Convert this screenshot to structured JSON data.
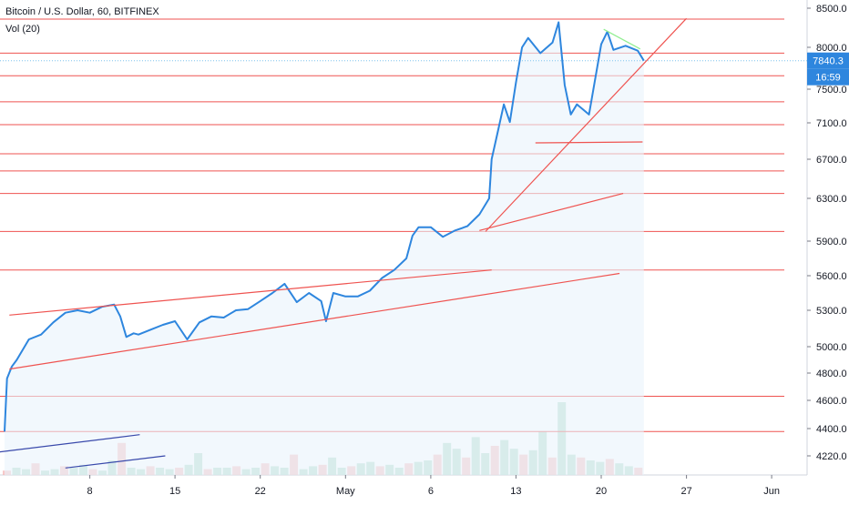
{
  "chart_data": {
    "type": "line",
    "title": "Bitcoin / U.S. Dollar, 60, BITFINEX",
    "indicator": "Vol (20)",
    "y_axis": {
      "position": "right",
      "ticks": [
        4220,
        4400,
        4600,
        4800,
        5000,
        5300,
        5600,
        5900,
        6300,
        6700,
        7100,
        7500,
        8000,
        8500
      ],
      "tick_labels": [
        "4220.0",
        "4400.0",
        "4600.0",
        "4800.0",
        "5000.0",
        "5300.0",
        "5600.0",
        "5900.0",
        "6300.0",
        "6700.0",
        "7100.0",
        "7500.0",
        "8000.0",
        "8500.0"
      ]
    },
    "x_axis": {
      "ticks": [
        8,
        15,
        22,
        29,
        36,
        43,
        50,
        57,
        64
      ],
      "tick_labels": [
        "8",
        "15",
        "22",
        "May",
        "6",
        "13",
        "20",
        "27",
        "Jun"
      ]
    },
    "price_label": "7840.3",
    "countdown_label": "16:59",
    "series": [
      {
        "color": "#2e86de",
        "x": [
          1,
          1.2,
          1.6,
          2,
          3,
          4,
          5,
          6,
          7,
          8,
          9,
          10,
          10.5,
          11,
          11.6,
          12,
          13,
          14,
          15,
          16,
          17,
          18,
          19,
          20,
          21,
          22,
          23,
          24,
          25,
          26,
          27,
          27.4,
          28,
          29,
          30,
          31,
          32,
          33,
          34,
          34.5,
          35,
          36,
          37,
          38,
          39,
          40,
          40.8,
          41,
          41.5,
          42,
          42.5,
          43,
          43.5,
          44,
          45,
          46,
          46.5,
          47,
          47.5,
          48,
          49,
          50,
          50.5,
          51,
          52,
          53,
          53.5
        ],
        "y": [
          4380,
          4760,
          4850,
          4900,
          5060,
          5100,
          5200,
          5280,
          5300,
          5280,
          5330,
          5350,
          5250,
          5080,
          5110,
          5100,
          5140,
          5180,
          5210,
          5060,
          5200,
          5250,
          5240,
          5300,
          5310,
          5380,
          5450,
          5530,
          5370,
          5450,
          5380,
          5210,
          5450,
          5420,
          5420,
          5470,
          5580,
          5650,
          5750,
          5950,
          6030,
          6030,
          5940,
          6000,
          6040,
          6150,
          6300,
          6700,
          7000,
          7320,
          7110,
          7580,
          8000,
          8120,
          7930,
          8060,
          8320,
          7550,
          7200,
          7320,
          7200,
          8040,
          8200,
          7970,
          8020,
          7960,
          7840
        ]
      }
    ],
    "volume_values": [
      3,
      5,
      4,
      8,
      3,
      4,
      6,
      5,
      7,
      4,
      3,
      10,
      22,
      5,
      4,
      6,
      5,
      4,
      5,
      7,
      15,
      4,
      5,
      5,
      6,
      4,
      5,
      8,
      6,
      5,
      14,
      4,
      6,
      7,
      12,
      5,
      6,
      8,
      9,
      6,
      7,
      5,
      8,
      9,
      10,
      14,
      22,
      18,
      12,
      26,
      15,
      20,
      24,
      18,
      14,
      17,
      30,
      12,
      50,
      14,
      12,
      10,
      9,
      11,
      8,
      6,
      5
    ],
    "annotations": {
      "horizontal_lines": [
        8360,
        7930,
        7660,
        7350,
        7080,
        6760,
        6580,
        6350,
        5990,
        5650,
        4630,
        4380
      ],
      "trendlines": [
        {
          "color": "#ef5350",
          "from": [
            1.4,
            5260
          ],
          "to": [
            41,
            5650
          ]
        },
        {
          "color": "#ef5350",
          "from": [
            1.4,
            4830
          ],
          "to": [
            51.5,
            5620
          ]
        },
        {
          "color": "#ef5350",
          "from": [
            40.5,
            5990
          ],
          "to": [
            57,
            8370
          ]
        },
        {
          "color": "#ef5350",
          "from": [
            40,
            6000
          ],
          "to": [
            51.8,
            6350
          ]
        },
        {
          "color": "#ef5350",
          "from": [
            44.6,
            6880
          ],
          "to": [
            53.4,
            6890
          ]
        },
        {
          "color": "#90ee90",
          "from": [
            50.2,
            8230
          ],
          "to": [
            53.2,
            7980
          ]
        },
        {
          "color": "#3949ab",
          "from": [
            0,
            4240
          ],
          "to": [
            12.1,
            4360
          ]
        },
        {
          "color": "#3949ab",
          "from": [
            6,
            4140
          ],
          "to": [
            14.2,
            4220
          ]
        }
      ]
    },
    "colors": {
      "line": "#2e86de",
      "area": "#e9f3fb",
      "support_resistance": "#ef5350",
      "price_badge": "#2e86de",
      "last_price_line": "#7ec4ee"
    }
  }
}
